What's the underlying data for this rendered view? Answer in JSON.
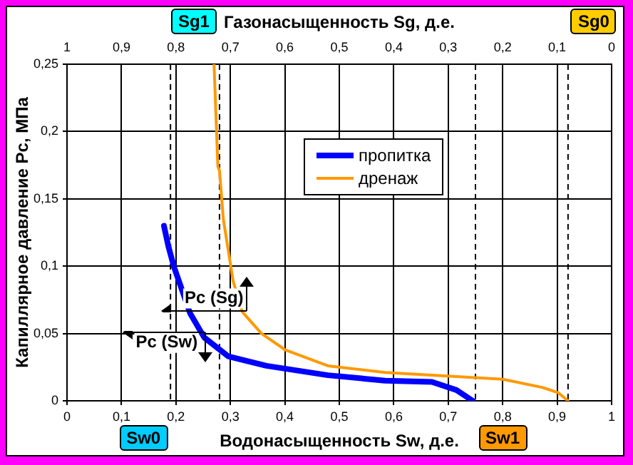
{
  "chart_data": {
    "type": "line",
    "xlabel": "Водонасыщенность Sw, д.е.",
    "ylabel": "Капиллярное давление Pc, МПа",
    "x2label": "Газонасыщенность Sg, д.е.",
    "xlim": [
      0,
      1
    ],
    "xticks": [
      0,
      {
        "value": 0.1,
        "label": "0,1"
      },
      {
        "value": 0.2,
        "label": "0,2"
      },
      {
        "value": 0.3,
        "label": "0,3"
      },
      {
        "value": 0.4,
        "label": "0,4"
      },
      {
        "value": 0.5,
        "label": "0,5"
      },
      {
        "value": 0.6,
        "label": "0,6"
      },
      {
        "value": 0.7,
        "label": "0,7"
      },
      {
        "value": 0.8,
        "label": "0,8"
      },
      {
        "value": 0.9,
        "label": "0,9"
      },
      1
    ],
    "x2lim": [
      1,
      0
    ],
    "x2ticks": [
      1,
      {
        "value": 0.9,
        "label": "0,9"
      },
      {
        "value": 0.8,
        "label": "0,8"
      },
      {
        "value": 0.7,
        "label": "0,7"
      },
      {
        "value": 0.6,
        "label": "0,6"
      },
      {
        "value": 0.5,
        "label": "0,5"
      },
      {
        "value": 0.4,
        "label": "0,4"
      },
      {
        "value": 0.3,
        "label": "0,3"
      },
      {
        "value": 0.2,
        "label": "0,2"
      },
      {
        "value": 0.1,
        "label": "0,1"
      },
      0
    ],
    "ylim": [
      0,
      0.25
    ],
    "yticks": [
      0,
      {
        "value": 0.05,
        "label": "0,05"
      },
      {
        "value": 0.1,
        "label": "0,1"
      },
      {
        "value": 0.15,
        "label": "0,15"
      },
      {
        "value": 0.2,
        "label": "0,2"
      },
      {
        "value": 0.25,
        "label": "0,25"
      }
    ],
    "grid": true,
    "legend": "top",
    "marker": "none",
    "series": [
      {
        "name": "пропитка",
        "color": "#0000ff",
        "x": [
          0.178,
          0.186,
          0.196,
          0.226,
          0.252,
          0.296,
          0.366,
          0.479,
          0.584,
          0.67,
          0.715,
          0.745
        ],
        "values": [
          0.13,
          0.115,
          0.1,
          0.065,
          0.047,
          0.033,
          0.026,
          0.019,
          0.015,
          0.014,
          0.008,
          0
        ]
      },
      {
        "name": "дренаж",
        "color": "#ff9900",
        "x": [
          0.27,
          0.277,
          0.28,
          0.287,
          0.305,
          0.322,
          0.357,
          0.4,
          0.479,
          0.584,
          0.715,
          0.8,
          0.872,
          0.902,
          0.92
        ],
        "values": [
          0.25,
          0.174,
          0.171,
          0.135,
          0.089,
          0.066,
          0.05,
          0.038,
          0.026,
          0.021,
          0.018,
          0.016,
          0.01,
          0.006,
          0
        ]
      }
    ],
    "ref_lines": [
      {
        "axis": "x",
        "value": 0.19,
        "label": "Sw0",
        "color": "#000000",
        "line_style": "dashed"
      },
      {
        "axis": "x",
        "value": 0.75,
        "label": "Sw1",
        "color": "#000000",
        "line_style": "dashed"
      },
      {
        "axis": "x2",
        "value": 0.72,
        "label": "Sg1",
        "color": "#000000",
        "line_style": "dashed"
      },
      {
        "axis": "x2",
        "value": 0.08,
        "label": "Sg0",
        "color": "#000000",
        "line_style": "dashed"
      }
    ],
    "annotations": [
      {
        "text": "Pc (Sg)",
        "x": 0.27,
        "y": 0.076
      },
      {
        "text": "Pc (Sw)",
        "x": 0.183,
        "y": 0.043
      }
    ]
  }
}
